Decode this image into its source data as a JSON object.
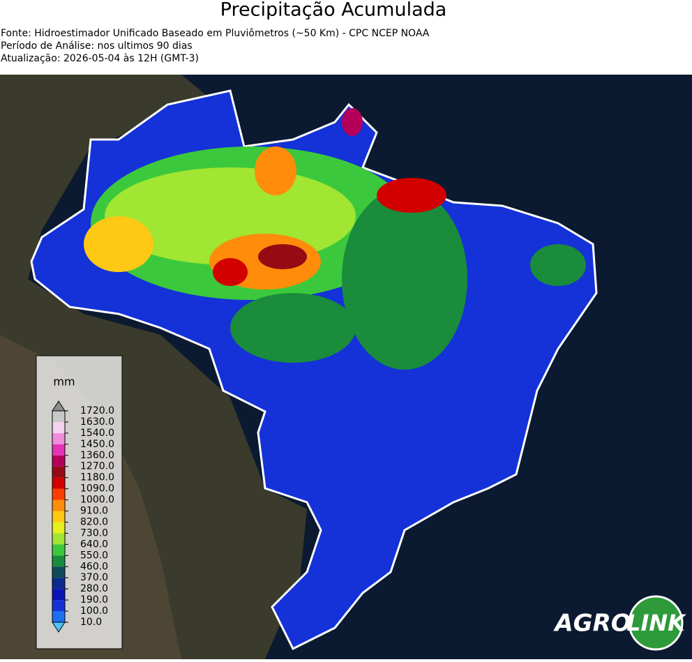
{
  "header": {
    "title": "Precipitação Acumulada",
    "lines": [
      "Fonte: Hidroestimador Unificado Baseado em Pluviômetros (~50 Km) - CPC NCEP NOAA",
      "Período de Análise: nos ultimos 90 dias",
      "Atualização: 2026-05-04 às 12H (GMT-3)"
    ]
  },
  "legend": {
    "unit": "mm",
    "ticks": [
      {
        "value": 10,
        "label": "10.0"
      },
      {
        "value": 100,
        "label": "100.0"
      },
      {
        "value": 190,
        "label": "190.0"
      },
      {
        "value": 280,
        "label": "280.0"
      },
      {
        "value": 370,
        "label": "370.0"
      },
      {
        "value": 460,
        "label": "460.0"
      },
      {
        "value": 550,
        "label": "550.0"
      },
      {
        "value": 640,
        "label": "640.0"
      },
      {
        "value": 730,
        "label": "730.0"
      },
      {
        "value": 820,
        "label": "820.0"
      },
      {
        "value": 910,
        "label": "910.0"
      },
      {
        "value": 1000,
        "label": "1000.0"
      },
      {
        "value": 1090,
        "label": "1090.0"
      },
      {
        "value": 1180,
        "label": "1180.0"
      },
      {
        "value": 1270,
        "label": "1270.0"
      },
      {
        "value": 1360,
        "label": "1360.0"
      },
      {
        "value": 1450,
        "label": "1450.0"
      },
      {
        "value": 1540,
        "label": "1540.0"
      },
      {
        "value": 1630,
        "label": "1630.0"
      },
      {
        "value": 1720,
        "label": "1720.0"
      }
    ],
    "colors": [
      "#1e6ef0",
      "#1432d8",
      "#0a14b4",
      "#0c2a8c",
      "#0e4a5a",
      "#1a8c3c",
      "#3cc83c",
      "#a0e632",
      "#e6f01e",
      "#ffc814",
      "#ff8c0a",
      "#ff3c00",
      "#d20000",
      "#960a14",
      "#b4005a",
      "#e632b4",
      "#f08cdc",
      "#f5d2f0",
      "#c8c8c8"
    ],
    "under_color": "#4fc3f7",
    "over_color": "#8c8c8c"
  },
  "logo": {
    "left": "AGRO",
    "right": "LINK"
  }
}
